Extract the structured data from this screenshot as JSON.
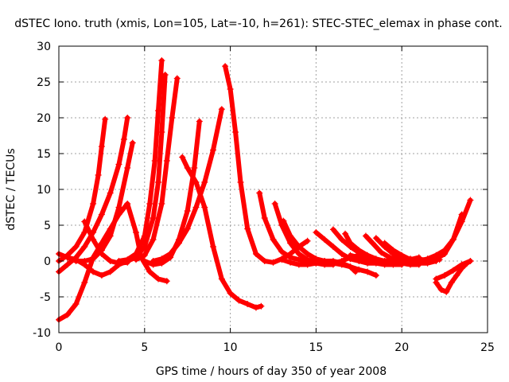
{
  "chart_data": {
    "type": "scatter",
    "title": "dSTEC Iono. truth (xmis, Lon=105, Lat=-10, h=261): STEC-STEC_elemax in phase cont.",
    "xlabel": "GPS time / hours of day 350 of year 2008",
    "ylabel": "dSTEC  / TECUs",
    "xlim": [
      0,
      25
    ],
    "ylim": [
      -10,
      30
    ],
    "xticks": [
      0,
      5,
      10,
      15,
      20,
      25
    ],
    "yticks": [
      -10,
      -5,
      0,
      5,
      10,
      15,
      20,
      25,
      30
    ],
    "grid": true,
    "legend": "none",
    "marker": "+",
    "color": "#ff0000",
    "series": [
      {
        "x": [
          0.0,
          0.5,
          1.0,
          1.5,
          2.0,
          2.3,
          2.5,
          2.7
        ],
        "y": [
          0.0,
          0.8,
          2.0,
          4.0,
          8.0,
          12.0,
          16.0,
          19.8
        ]
      },
      {
        "x": [
          0.0,
          0.5,
          1.0,
          1.5,
          2.0,
          2.5,
          3.0,
          3.5,
          4.0,
          4.3
        ],
        "y": [
          1.0,
          0.5,
          0.0,
          0.0,
          0.3,
          1.5,
          3.5,
          7.5,
          13.0,
          16.5
        ]
      },
      {
        "x": [
          0.0,
          0.5,
          1.0,
          1.5,
          2.0,
          2.5,
          3.0,
          3.5,
          3.8,
          4.0
        ],
        "y": [
          -1.5,
          -0.5,
          0.5,
          2.0,
          4.0,
          6.5,
          9.5,
          13.5,
          17.0,
          20.0
        ]
      },
      {
        "x": [
          0.0,
          0.5,
          1.0,
          1.5,
          2.0,
          2.5,
          3.0,
          3.5,
          4.0,
          4.5,
          4.8,
          5.3,
          5.8,
          6.3
        ],
        "y": [
          -8.2,
          -7.5,
          -6.0,
          -3.0,
          0.5,
          2.5,
          4.5,
          6.5,
          8.0,
          4.0,
          0.5,
          -1.5,
          -2.5,
          -2.8
        ]
      },
      {
        "x": [
          1.5,
          2.0,
          2.5,
          3.0,
          3.5,
          4.0
        ],
        "y": [
          5.5,
          3.0,
          1.0,
          0.0,
          -0.3,
          -0.2
        ]
      },
      {
        "x": [
          0.5,
          1.0,
          1.5,
          2.0,
          2.5,
          3.0,
          3.5,
          4.0
        ],
        "y": [
          0.5,
          0.2,
          -0.5,
          -1.5,
          -2.0,
          -1.5,
          -0.5,
          0.0
        ]
      },
      {
        "x": [
          3.5,
          4.0,
          4.5,
          5.0,
          5.3,
          5.6,
          5.8,
          6.0
        ],
        "y": [
          0.0,
          0.2,
          1.0,
          3.5,
          8.0,
          14.0,
          21.0,
          28.0
        ]
      },
      {
        "x": [
          4.0,
          4.5,
          5.0,
          5.5,
          5.8,
          6.0,
          6.2
        ],
        "y": [
          0.0,
          0.5,
          2.0,
          6.0,
          11.0,
          18.0,
          26.0
        ]
      },
      {
        "x": [
          4.5,
          5.0,
          5.5,
          6.0,
          6.3,
          6.6,
          6.9
        ],
        "y": [
          0.2,
          0.8,
          3.0,
          8.0,
          14.0,
          20.0,
          25.5
        ]
      },
      {
        "x": [
          5.0,
          5.5,
          6.0,
          6.5,
          7.0,
          7.5,
          7.9,
          8.2
        ],
        "y": [
          0.0,
          -0.5,
          -0.3,
          0.5,
          3.0,
          7.0,
          13.0,
          19.5
        ]
      },
      {
        "x": [
          5.5,
          6.0,
          6.5,
          7.0,
          7.5,
          8.0,
          8.5,
          9.0,
          9.5
        ],
        "y": [
          0.0,
          0.3,
          1.0,
          2.5,
          4.5,
          7.5,
          11.0,
          15.5,
          21.2
        ]
      },
      {
        "x": [
          7.2,
          7.5,
          8.0,
          8.5,
          9.0,
          9.5,
          10.0,
          10.5,
          11.0,
          11.5,
          11.8
        ],
        "y": [
          14.5,
          13.0,
          11.0,
          7.5,
          2.0,
          -2.5,
          -4.5,
          -5.5,
          -6.0,
          -6.5,
          -6.3
        ]
      },
      {
        "x": [
          9.7,
          10.0,
          10.3,
          10.6,
          11.0,
          11.5,
          12.0,
          12.5,
          13.0,
          13.5,
          14.0,
          14.5
        ],
        "y": [
          27.2,
          24.0,
          18.0,
          11.0,
          4.5,
          1.0,
          0.0,
          -0.2,
          0.3,
          1.0,
          2.0,
          2.8
        ]
      },
      {
        "x": [
          11.7,
          12.0,
          12.5,
          13.0,
          13.5,
          14.0,
          14.5,
          15.0,
          15.5,
          16.0
        ],
        "y": [
          9.5,
          6.0,
          3.0,
          1.3,
          0.5,
          0.2,
          0.0,
          -0.3,
          -0.5,
          -0.5
        ]
      },
      {
        "x": [
          12.6,
          13.0,
          13.5,
          14.0,
          14.5,
          15.0,
          15.5,
          16.0,
          16.5,
          17.0,
          17.5
        ],
        "y": [
          8.0,
          5.0,
          2.5,
          1.0,
          0.2,
          -0.3,
          -0.3,
          -0.3,
          0.0,
          0.5,
          0.8
        ]
      },
      {
        "x": [
          13.0,
          13.5,
          14.0,
          14.5,
          15.0,
          15.5,
          16.0,
          16.5,
          17.0,
          17.3
        ],
        "y": [
          0.2,
          -0.2,
          -0.5,
          -0.5,
          -0.3,
          0.0,
          0.0,
          -0.3,
          -0.8,
          -1.5
        ]
      },
      {
        "x": [
          13.1,
          13.5,
          14.0,
          14.5,
          15.0,
          15.5,
          16.0,
          16.5,
          17.0,
          17.5,
          18.0,
          18.5
        ],
        "y": [
          5.6,
          3.5,
          2.0,
          1.0,
          0.3,
          0.0,
          -0.3,
          -0.5,
          -0.8,
          -1.2,
          -1.5,
          -2.0
        ]
      },
      {
        "x": [
          15.0,
          15.5,
          16.0,
          16.5,
          17.0,
          17.5,
          18.0,
          18.5,
          19.0,
          19.5,
          20.0
        ],
        "y": [
          4.0,
          3.0,
          2.0,
          1.0,
          0.3,
          0.0,
          -0.3,
          -0.3,
          -0.5,
          -0.5,
          -0.5
        ]
      },
      {
        "x": [
          16.0,
          16.5,
          17.0,
          17.5,
          18.0,
          18.5,
          19.0,
          19.5,
          20.0,
          20.5,
          21.0
        ],
        "y": [
          4.4,
          3.0,
          2.0,
          1.2,
          0.6,
          0.2,
          0.0,
          0.0,
          -0.3,
          -0.5,
          -0.5
        ]
      },
      {
        "x": [
          16.7,
          17.0,
          17.5,
          18.0,
          18.5,
          19.0,
          19.5,
          20.0,
          20.5,
          21.0
        ],
        "y": [
          3.8,
          2.5,
          1.5,
          0.8,
          0.3,
          0.0,
          0.0,
          0.0,
          0.2,
          0.5
        ]
      },
      {
        "x": [
          17.9,
          18.3,
          18.8,
          19.3,
          19.8,
          20.3,
          20.8,
          21.3,
          21.8,
          22.2
        ],
        "y": [
          3.5,
          2.5,
          1.2,
          0.5,
          0.0,
          -0.3,
          -0.3,
          0.0,
          0.3,
          0.2
        ]
      },
      {
        "x": [
          18.5,
          19.0,
          19.5,
          20.0,
          20.5,
          21.0,
          21.5,
          22.0
        ],
        "y": [
          3.2,
          2.0,
          1.0,
          0.3,
          0.0,
          -0.3,
          -0.3,
          0.0
        ]
      },
      {
        "x": [
          19.0,
          19.5,
          20.0,
          20.5,
          21.0,
          21.5,
          22.0,
          22.5,
          23.0,
          23.5
        ],
        "y": [
          2.5,
          1.5,
          0.8,
          0.2,
          0.0,
          0.0,
          0.3,
          1.0,
          3.0,
          6.5
        ]
      },
      {
        "x": [
          20.0,
          20.5,
          21.0,
          21.5,
          22.0,
          22.5,
          23.0,
          23.5,
          24.0
        ],
        "y": [
          0.0,
          0.0,
          0.0,
          0.3,
          0.8,
          1.5,
          3.0,
          5.5,
          8.5
        ]
      },
      {
        "x": [
          22.0,
          22.3,
          22.6,
          22.9,
          23.2,
          23.5,
          23.8,
          24.0
        ],
        "y": [
          -3.0,
          -4.0,
          -4.3,
          -3.0,
          -2.0,
          -1.0,
          -0.3,
          0.0
        ]
      },
      {
        "x": [
          22.0,
          22.5,
          23.0,
          23.5,
          24.0
        ],
        "y": [
          -2.5,
          -2.0,
          -1.3,
          -0.5,
          0.0
        ]
      },
      {
        "x": [
          17.0,
          17.5,
          18.0,
          18.5,
          19.0,
          19.5,
          20.0,
          20.5,
          21.0,
          21.5
        ],
        "y": [
          0.8,
          0.5,
          0.3,
          0.0,
          0.0,
          0.2,
          0.3,
          0.3,
          0.2,
          0.2
        ]
      }
    ]
  }
}
